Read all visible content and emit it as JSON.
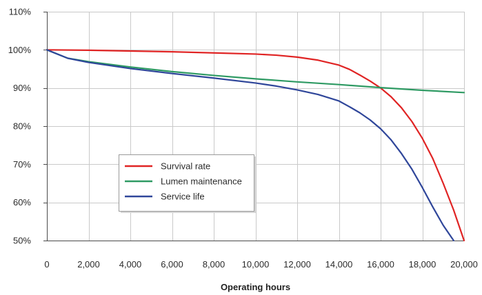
{
  "chart_data": {
    "type": "line",
    "title": "",
    "xlabel": "Operating hours",
    "ylabel": "",
    "xlim": [
      0,
      20000
    ],
    "ylim": [
      50,
      110
    ],
    "x_ticks": [
      0,
      2000,
      4000,
      6000,
      8000,
      10000,
      12000,
      14000,
      16000,
      18000,
      20000
    ],
    "x_tick_labels": [
      "0",
      "2,000",
      "4,000",
      "6,000",
      "8,000",
      "10,000",
      "12,000",
      "14,000",
      "16,000",
      "18,000",
      "20,000"
    ],
    "y_ticks": [
      50,
      60,
      70,
      80,
      90,
      100,
      110
    ],
    "y_tick_labels": [
      "50%",
      "60%",
      "70%",
      "80%",
      "90%",
      "100%",
      "110%"
    ],
    "grid": true,
    "legend_position": "middle-left",
    "series": [
      {
        "name": "Survival rate",
        "color": "#e02424",
        "x": [
          0,
          2000,
          4000,
          6000,
          8000,
          10000,
          11000,
          12000,
          13000,
          14000,
          14500,
          15000,
          15500,
          16000,
          16500,
          17000,
          17500,
          18000,
          18500,
          19000,
          19500,
          20000
        ],
        "y": [
          100,
          99.9,
          99.7,
          99.5,
          99.2,
          98.9,
          98.6,
          98.1,
          97.3,
          96.0,
          94.9,
          93.4,
          91.8,
          90.0,
          87.7,
          84.8,
          81.2,
          76.8,
          71.5,
          65.0,
          58.0,
          50.0
        ]
      },
      {
        "name": "Lumen maintenance",
        "color": "#2e9a63",
        "x": [
          0,
          1000,
          2000,
          4000,
          6000,
          8000,
          10000,
          12000,
          14000,
          16000,
          18000,
          20000
        ],
        "y": [
          100,
          97.8,
          96.9,
          95.5,
          94.3,
          93.3,
          92.4,
          91.6,
          90.9,
          90.1,
          89.4,
          88.8
        ]
      },
      {
        "name": "Service life",
        "color": "#2f469a",
        "x": [
          0,
          1000,
          2000,
          4000,
          6000,
          8000,
          10000,
          11000,
          12000,
          13000,
          14000,
          14500,
          15000,
          15500,
          16000,
          16500,
          17000,
          17500,
          18000,
          18500,
          19000,
          19500
        ],
        "y": [
          100,
          97.8,
          96.7,
          95.1,
          93.8,
          92.6,
          91.3,
          90.5,
          89.5,
          88.3,
          86.6,
          85.1,
          83.5,
          81.6,
          79.3,
          76.4,
          72.8,
          68.7,
          63.9,
          58.8,
          54.0,
          49.4
        ]
      }
    ]
  }
}
